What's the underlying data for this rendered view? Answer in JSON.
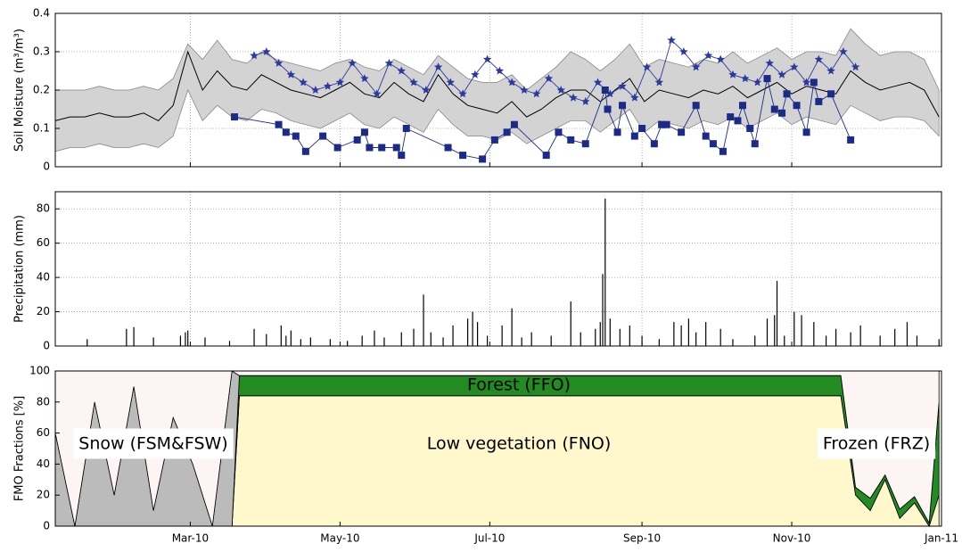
{
  "chart_data": [
    {
      "type": "line",
      "ylabel": "Soil Moisture (m³/m³)",
      "grid": true,
      "xlim": [
        4,
        365
      ],
      "xticks": [
        59,
        120,
        181,
        243,
        304,
        365
      ],
      "ylim": [
        0,
        0.4
      ],
      "yticks": [
        0,
        0.1,
        0.2,
        0.3,
        0.4
      ],
      "x": [
        4,
        10,
        16,
        22,
        28,
        34,
        40,
        46,
        52,
        58,
        64,
        70,
        76,
        82,
        88,
        94,
        100,
        106,
        112,
        118,
        124,
        130,
        136,
        142,
        148,
        154,
        160,
        166,
        172,
        178,
        184,
        190,
        196,
        202,
        208,
        214,
        220,
        226,
        232,
        238,
        244,
        250,
        256,
        262,
        268,
        274,
        280,
        286,
        292,
        298,
        304,
        310,
        316,
        322,
        328,
        334,
        340,
        346,
        352,
        358,
        364
      ],
      "series": [
        {
          "kind": "band",
          "color": "#d3d3d3",
          "upper": [
            0.2,
            0.2,
            0.2,
            0.21,
            0.2,
            0.2,
            0.21,
            0.2,
            0.23,
            0.32,
            0.28,
            0.33,
            0.28,
            0.27,
            0.3,
            0.28,
            0.27,
            0.26,
            0.25,
            0.27,
            0.28,
            0.26,
            0.25,
            0.28,
            0.26,
            0.24,
            0.29,
            0.26,
            0.23,
            0.22,
            0.22,
            0.24,
            0.2,
            0.23,
            0.26,
            0.3,
            0.28,
            0.25,
            0.28,
            0.32,
            0.26,
            0.28,
            0.27,
            0.26,
            0.28,
            0.27,
            0.3,
            0.27,
            0.29,
            0.31,
            0.28,
            0.3,
            0.3,
            0.29,
            0.36,
            0.32,
            0.29,
            0.3,
            0.3,
            0.28,
            0.2
          ],
          "lower": [
            0.04,
            0.05,
            0.05,
            0.06,
            0.05,
            0.05,
            0.06,
            0.05,
            0.08,
            0.2,
            0.12,
            0.16,
            0.13,
            0.12,
            0.15,
            0.14,
            0.12,
            0.11,
            0.1,
            0.12,
            0.14,
            0.11,
            0.1,
            0.13,
            0.11,
            0.09,
            0.15,
            0.11,
            0.08,
            0.08,
            0.07,
            0.09,
            0.06,
            0.08,
            0.1,
            0.12,
            0.12,
            0.09,
            0.12,
            0.15,
            0.09,
            0.12,
            0.11,
            0.1,
            0.12,
            0.11,
            0.13,
            0.1,
            0.12,
            0.14,
            0.11,
            0.13,
            0.12,
            0.11,
            0.16,
            0.14,
            0.12,
            0.13,
            0.13,
            0.12,
            0.08
          ]
        },
        {
          "kind": "line",
          "color": "#000000",
          "values": [
            0.12,
            0.13,
            0.13,
            0.14,
            0.13,
            0.13,
            0.14,
            0.12,
            0.16,
            0.3,
            0.2,
            0.25,
            0.21,
            0.2,
            0.24,
            0.22,
            0.2,
            0.19,
            0.18,
            0.2,
            0.22,
            0.19,
            0.18,
            0.22,
            0.19,
            0.17,
            0.24,
            0.19,
            0.16,
            0.15,
            0.14,
            0.17,
            0.13,
            0.15,
            0.18,
            0.2,
            0.2,
            0.17,
            0.2,
            0.23,
            0.17,
            0.2,
            0.19,
            0.18,
            0.2,
            0.19,
            0.21,
            0.18,
            0.2,
            0.22,
            0.19,
            0.21,
            0.2,
            0.19,
            0.25,
            0.22,
            0.2,
            0.21,
            0.22,
            0.2,
            0.13
          ]
        },
        {
          "kind": "markers",
          "marker": "star",
          "color": "#2b3a9e",
          "x": [
            85,
            90,
            95,
            100,
            105,
            110,
            115,
            120,
            125,
            130,
            135,
            140,
            145,
            150,
            155,
            160,
            165,
            170,
            175,
            180,
            185,
            190,
            195,
            200,
            205,
            210,
            215,
            220,
            225,
            230,
            235,
            240,
            245,
            250,
            255,
            260,
            265,
            270,
            275,
            280,
            285,
            290,
            295,
            300,
            305,
            310,
            315,
            320,
            325,
            330
          ],
          "values": [
            0.29,
            0.3,
            0.27,
            0.24,
            0.22,
            0.2,
            0.21,
            0.22,
            0.27,
            0.23,
            0.19,
            0.27,
            0.25,
            0.22,
            0.2,
            0.26,
            0.22,
            0.19,
            0.24,
            0.28,
            0.25,
            0.22,
            0.2,
            0.19,
            0.23,
            0.2,
            0.18,
            0.17,
            0.22,
            0.19,
            0.21,
            0.18,
            0.26,
            0.22,
            0.33,
            0.3,
            0.26,
            0.29,
            0.28,
            0.24,
            0.23,
            0.22,
            0.27,
            0.24,
            0.26,
            0.22,
            0.28,
            0.25,
            0.3,
            0.26
          ]
        },
        {
          "kind": "markers",
          "marker": "square",
          "color": "#1c2a8a",
          "x": [
            77,
            95,
            98,
            102,
            106,
            113,
            119,
            127,
            130,
            132,
            137,
            143,
            145,
            147,
            164,
            170,
            178,
            183,
            188,
            191,
            204,
            209,
            214,
            220,
            228,
            229,
            233,
            235,
            240,
            243,
            248,
            251,
            253,
            259,
            265,
            269,
            272,
            276,
            279,
            282,
            284,
            287,
            289,
            294,
            297,
            300,
            302,
            306,
            310,
            313,
            315,
            320,
            328
          ],
          "values": [
            0.13,
            0.11,
            0.09,
            0.08,
            0.04,
            0.08,
            0.05,
            0.07,
            0.09,
            0.05,
            0.05,
            0.05,
            0.03,
            0.1,
            0.05,
            0.03,
            0.02,
            0.07,
            0.09,
            0.11,
            0.03,
            0.09,
            0.07,
            0.06,
            0.2,
            0.15,
            0.09,
            0.16,
            0.08,
            0.1,
            0.06,
            0.11,
            0.11,
            0.09,
            0.16,
            0.08,
            0.06,
            0.04,
            0.13,
            0.12,
            0.16,
            0.1,
            0.06,
            0.23,
            0.15,
            0.14,
            0.19,
            0.16,
            0.09,
            0.22,
            0.17,
            0.19,
            0.07
          ]
        }
      ]
    },
    {
      "type": "bar",
      "ylabel": "Precipitation (mm)",
      "grid": true,
      "color": "#000000",
      "xlim": [
        4,
        365
      ],
      "xticks": [
        59,
        120,
        181,
        243,
        304,
        365
      ],
      "ylim": [
        0,
        90
      ],
      "yticks": [
        0,
        20,
        40,
        60,
        80
      ],
      "x": [
        17,
        33,
        36,
        44,
        55,
        57,
        58,
        65,
        75,
        85,
        90,
        96,
        98,
        100,
        104,
        108,
        116,
        123,
        129,
        134,
        138,
        145,
        150,
        154,
        157,
        162,
        166,
        172,
        174,
        176,
        180,
        186,
        190,
        194,
        198,
        206,
        214,
        218,
        224,
        226,
        227,
        228,
        230,
        234,
        238,
        243,
        250,
        256,
        259,
        262,
        265,
        269,
        275,
        280,
        289,
        294,
        297,
        298,
        301,
        305,
        308,
        313,
        318,
        322,
        328,
        332,
        340,
        346,
        351,
        355,
        364
      ],
      "values": [
        4,
        10,
        11,
        5,
        6,
        8,
        9,
        5,
        3,
        10,
        7,
        12,
        6,
        9,
        4,
        5,
        4,
        3,
        6,
        9,
        5,
        8,
        10,
        30,
        8,
        5,
        12,
        16,
        20,
        14,
        6,
        12,
        22,
        5,
        8,
        6,
        26,
        8,
        10,
        14,
        42,
        86,
        16,
        10,
        12,
        6,
        4,
        14,
        12,
        16,
        8,
        14,
        10,
        4,
        6,
        16,
        18,
        38,
        6,
        20,
        18,
        14,
        6,
        10,
        8,
        12,
        6,
        10,
        14,
        6,
        4
      ]
    },
    {
      "type": "area",
      "ylabel": "FMO Fractions [%]",
      "xlim": [
        4,
        365
      ],
      "xticks": [
        {
          "value": 59,
          "label": "Mar-10"
        },
        {
          "value": 120,
          "label": "May-10"
        },
        {
          "value": 181,
          "label": "Jul-10"
        },
        {
          "value": 243,
          "label": "Sep-10"
        },
        {
          "value": 304,
          "label": "Nov-10"
        },
        {
          "value": 365,
          "label": "Jan-11"
        }
      ],
      "ylim": [
        0,
        100
      ],
      "yticks": [
        0,
        20,
        40,
        60,
        80,
        100
      ],
      "x": [
        4,
        12,
        20,
        28,
        36,
        44,
        52,
        60,
        68,
        76,
        79,
        318,
        324,
        330,
        336,
        342,
        348,
        354,
        360,
        364
      ],
      "series": [
        {
          "name": "Low vegetation (FNO)",
          "color": "#fff8cc",
          "values": [
            0,
            0,
            0,
            0,
            0,
            0,
            0,
            0,
            0,
            0,
            84,
            84,
            84,
            20,
            10,
            30,
            5,
            15,
            0,
            20
          ]
        },
        {
          "name": "Forest (FFO)",
          "color": "#228b22",
          "values": [
            0,
            0,
            0,
            0,
            0,
            0,
            0,
            0,
            0,
            0,
            13,
            13,
            13,
            5,
            8,
            3,
            6,
            4,
            2,
            60
          ]
        },
        {
          "name": "Snow (FSM&FSW)",
          "color": "#bbbbbb",
          "values": [
            60,
            0,
            80,
            20,
            90,
            10,
            70,
            40,
            0,
            100,
            0,
            0,
            0,
            0,
            0,
            0,
            0,
            0,
            0,
            0
          ]
        },
        {
          "name": "Frozen (FRZ)",
          "color": "#fdf4f4",
          "values": [
            40,
            100,
            20,
            80,
            10,
            90,
            30,
            60,
            100,
            0,
            3,
            3,
            3,
            75,
            82,
            67,
            89,
            81,
            98,
            20
          ]
        }
      ]
    }
  ]
}
